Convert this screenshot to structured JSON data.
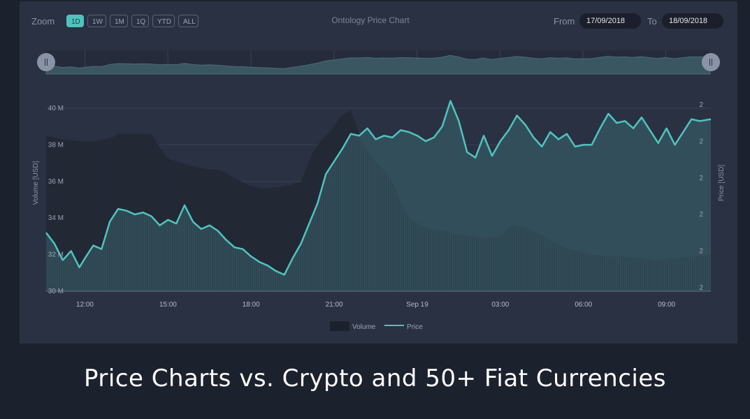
{
  "toolbar": {
    "zoom_label": "Zoom",
    "zoom_buttons": [
      "1D",
      "1W",
      "1M",
      "1Q",
      "YTD",
      "ALL"
    ],
    "active_zoom": "1D",
    "from_label": "From",
    "from_value": "17/09/2018",
    "to_label": "To",
    "to_value": "18/09/2018"
  },
  "headline": "Price Charts vs. Crypto and 50+ Fiat Currencies",
  "colors": {
    "panel": "#2a3142",
    "page": "#1c212e",
    "price_line": "#4fc4bf",
    "price_fill": "#35545f",
    "volume_fill": "#222835",
    "accent": "#4fc4bf"
  },
  "chart_data": {
    "type": "line",
    "title": "Ontology Price Chart",
    "ylabel_left": "Volume [USD]",
    "ylabel_right": "Price [USD]",
    "y_left_ticks": [
      "30 M",
      "32 M",
      "34 M",
      "36 M",
      "38 M",
      "40 M"
    ],
    "y_left_lim": [
      30,
      40
    ],
    "y_right_ticks": [
      "2",
      "2",
      "2",
      "2",
      "2",
      "2"
    ],
    "x_ticks": [
      "12:00",
      "15:00",
      "18:00",
      "21:00",
      "Sep 19",
      "03:00",
      "06:00",
      "09:00"
    ],
    "x_tick_hours": [
      12,
      15,
      18,
      21,
      24,
      27,
      30,
      33
    ],
    "x_range_hours": [
      10.6,
      34.6
    ],
    "legend": [
      "Volume",
      "Price"
    ],
    "legend_position": "bottom",
    "grid": true,
    "series": [
      {
        "name": "Volume",
        "unit": "M USD",
        "x": [
          10.6,
          11.2,
          11.8,
          12.4,
          13.0,
          13.2,
          13.8,
          14.4,
          14.9,
          15.1,
          15.7,
          16.3,
          16.9,
          17.4,
          17.9,
          18.4,
          19.0,
          19.4,
          19.8,
          20.2,
          20.5,
          20.9,
          21.2,
          21.6,
          22.0,
          22.4,
          22.7,
          23.1,
          23.6,
          24.0,
          24.5,
          25.0,
          25.5,
          26.0,
          26.5,
          27.0,
          27.4,
          27.9,
          28.3,
          28.8,
          29.3,
          29.8,
          30.3,
          30.9,
          31.5,
          32.1,
          32.7,
          33.3,
          33.9,
          34.6
        ],
        "values": [
          38.5,
          38.3,
          38.2,
          38.2,
          38.4,
          38.6,
          38.6,
          38.6,
          37.4,
          37.2,
          36.9,
          36.7,
          36.6,
          36.2,
          35.8,
          35.6,
          35.7,
          35.8,
          36.0,
          37.5,
          38.2,
          38.8,
          39.5,
          39.9,
          38.2,
          37.2,
          36.8,
          36.0,
          34.2,
          33.7,
          33.4,
          33.3,
          33.1,
          33.0,
          32.9,
          33.0,
          33.6,
          33.5,
          33.2,
          32.8,
          32.4,
          32.2,
          32.0,
          31.9,
          31.9,
          31.8,
          31.7,
          31.8,
          31.9,
          32.0
        ]
      },
      {
        "name": "Price",
        "x": [
          10.6,
          10.9,
          11.2,
          11.5,
          11.8,
          12.0,
          12.3,
          12.6,
          12.9,
          13.2,
          13.5,
          13.8,
          14.1,
          14.4,
          14.7,
          15.0,
          15.3,
          15.6,
          15.9,
          16.2,
          16.5,
          16.8,
          17.1,
          17.4,
          17.7,
          18.0,
          18.3,
          18.6,
          18.9,
          19.2,
          19.5,
          19.8,
          20.1,
          20.4,
          20.7,
          21.0,
          21.3,
          21.6,
          21.9,
          22.2,
          22.5,
          22.8,
          23.1,
          23.4,
          23.7,
          24.0,
          24.3,
          24.6,
          24.9,
          25.2,
          25.5,
          25.8,
          26.1,
          26.4,
          26.7,
          27.0,
          27.3,
          27.6,
          27.9,
          28.2,
          28.5,
          28.8,
          29.1,
          29.4,
          29.7,
          30.0,
          30.3,
          30.6,
          30.9,
          31.2,
          31.5,
          31.8,
          32.1,
          32.4,
          32.7,
          33.0,
          33.3,
          33.6,
          33.9,
          34.2,
          34.6
        ],
        "values": [
          33.2,
          32.6,
          31.7,
          32.2,
          31.3,
          31.8,
          32.5,
          32.3,
          33.8,
          34.5,
          34.4,
          34.2,
          34.3,
          34.1,
          33.6,
          33.9,
          33.7,
          34.7,
          33.8,
          33.4,
          33.6,
          33.3,
          32.8,
          32.4,
          32.3,
          31.9,
          31.6,
          31.4,
          31.1,
          30.9,
          31.8,
          32.6,
          33.7,
          34.8,
          36.4,
          37.1,
          37.8,
          38.6,
          38.5,
          38.9,
          38.3,
          38.5,
          38.4,
          38.8,
          38.7,
          38.5,
          38.2,
          38.4,
          39.0,
          40.4,
          39.3,
          37.6,
          37.3,
          38.5,
          37.4,
          38.2,
          38.8,
          39.6,
          39.1,
          38.4,
          37.9,
          38.7,
          38.3,
          38.6,
          37.9,
          38.0,
          38.0,
          38.9,
          39.7,
          39.2,
          39.3,
          38.9,
          39.5,
          38.8,
          38.1,
          38.9,
          38.0,
          38.7,
          39.4,
          39.3,
          39.4
        ]
      }
    ]
  }
}
